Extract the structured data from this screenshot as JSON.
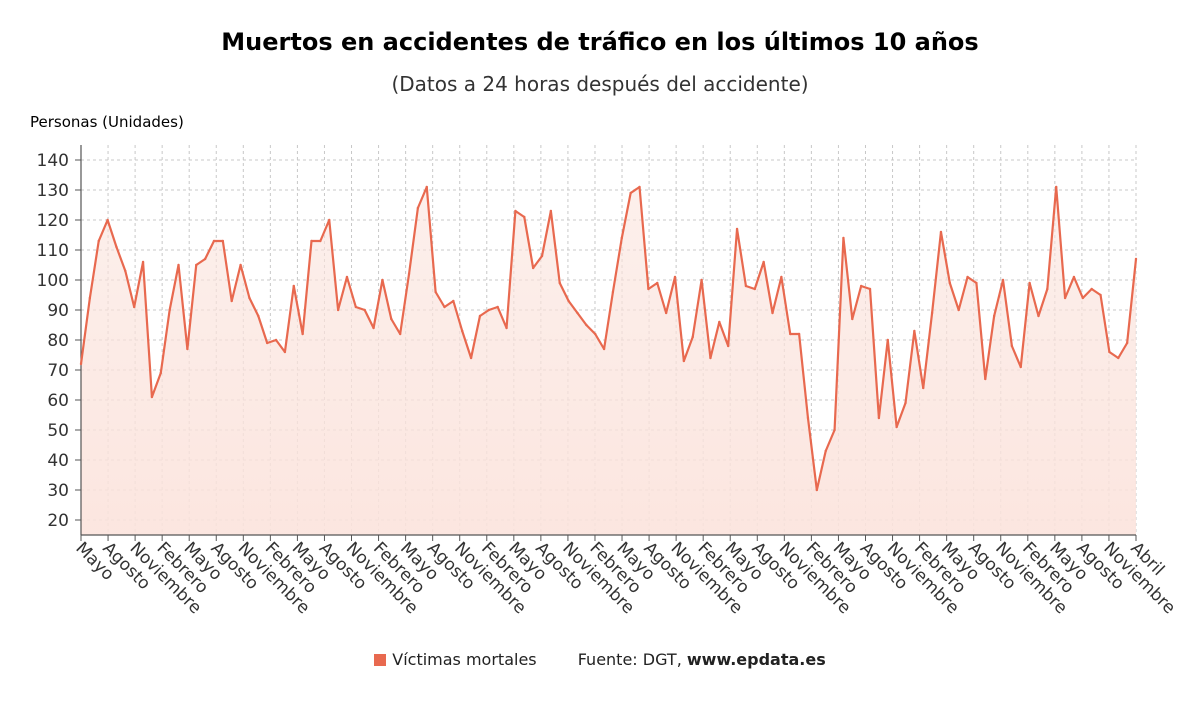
{
  "title": "Muertos en accidentes de tráfico en los últimos 10 años",
  "subtitle": "(Datos a 24 horas después del accidente)",
  "legend_label": "Víctimas mortales",
  "source_prefix": "Fuente: DGT,",
  "source_site": "www.epdata.es",
  "colors": {
    "line": "#e8694f",
    "fill_top": "#fbe3dc",
    "grid": "#c8c8c8",
    "axis": "#555555"
  },
  "chart_data": {
    "type": "area",
    "ylabel": "Personas (Unidades)",
    "ylim": [
      15,
      145
    ],
    "yticks": [
      20,
      30,
      40,
      50,
      60,
      70,
      80,
      90,
      100,
      110,
      120,
      130,
      140
    ],
    "x_tick_labels": [
      "Mayo",
      "Agosto",
      "Noviembre",
      "Febrero",
      "Mayo",
      "Agosto",
      "Noviembre",
      "Febrero",
      "Mayo",
      "Agosto",
      "Noviembre",
      "Febrero",
      "Mayo",
      "Agosto",
      "Noviembre",
      "Febrero",
      "Mayo",
      "Agosto",
      "Noviembre",
      "Febrero",
      "Mayo",
      "Agosto",
      "Noviembre",
      "Febrero",
      "Mayo",
      "Agosto",
      "Noviembre",
      "Febrero",
      "Mayo",
      "Agosto",
      "Noviembre",
      "Febrero",
      "Mayo",
      "Agosto",
      "Noviembre",
      "Febrero",
      "Mayo",
      "Agosto",
      "Noviembre",
      "Abril"
    ],
    "grid": true,
    "series": [
      {
        "name": "Víctimas mortales",
        "values": [
          72,
          94,
          113,
          120,
          111,
          103,
          91,
          106,
          61,
          69,
          90,
          105,
          77,
          105,
          107,
          113,
          113,
          93,
          105,
          94,
          88,
          79,
          80,
          76,
          98,
          82,
          113,
          113,
          120,
          90,
          101,
          91,
          90,
          84,
          100,
          87,
          82,
          102,
          124,
          131,
          96,
          91,
          93,
          83,
          74,
          88,
          90,
          91,
          84,
          123,
          121,
          104,
          108,
          123,
          99,
          93,
          89,
          85,
          82,
          77,
          96,
          114,
          129,
          131,
          97,
          99,
          89,
          101,
          73,
          81,
          100,
          74,
          86,
          78,
          117,
          98,
          97,
          106,
          89,
          101,
          82,
          82,
          54,
          30,
          43,
          50,
          114,
          87,
          98,
          97,
          54,
          80,
          51,
          59,
          83,
          64,
          89,
          116,
          99,
          90,
          101,
          99,
          67,
          88,
          100,
          78,
          71,
          99,
          88,
          97,
          131,
          94,
          101,
          94,
          97,
          95,
          76,
          74,
          79,
          107
        ]
      }
    ]
  }
}
